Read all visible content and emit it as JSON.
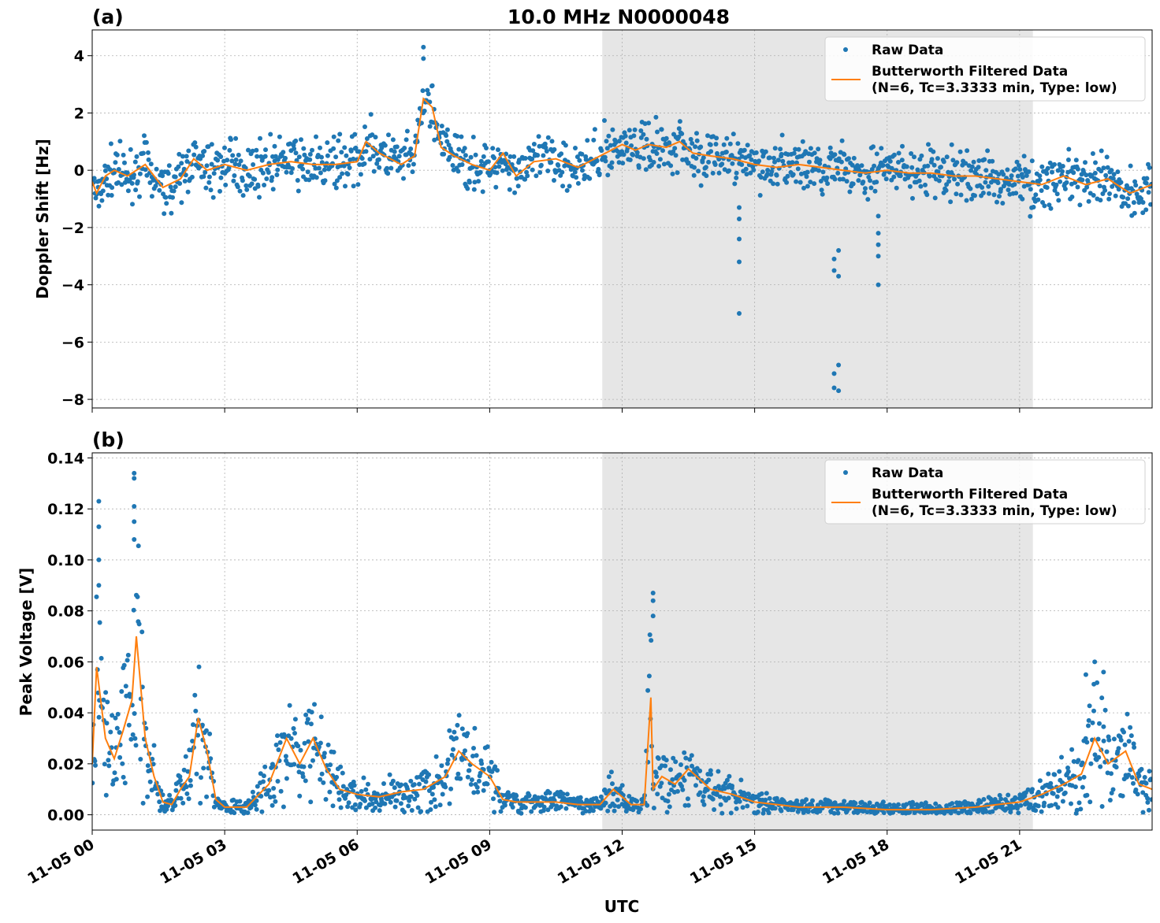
{
  "figure": {
    "title": "10.0 MHz N0000048",
    "xlabel": "UTC",
    "shaded_interval": {
      "start_hour": 11.55,
      "end_hour": 21.3
    },
    "colors": {
      "raw": "#1f77b4",
      "filtered": "#ff7f0e",
      "shade": "#e6e6e6",
      "grid": "#b0b0b0"
    }
  },
  "legend": {
    "raw_label": "Raw Data",
    "filtered_label_line1": "Butterworth Filtered Data",
    "filtered_label_line2": "(N=6, Tc=3.3333 min, Type: low)"
  },
  "chart_data": [
    {
      "type": "scatter",
      "panel_label": "(a)",
      "ylabel": "Doppler Shift [Hz]",
      "xlim_hours": [
        0,
        24
      ],
      "ylim": [
        -8.3,
        4.9
      ],
      "xticks": [
        {
          "hour": 0,
          "label": "11-05 00"
        },
        {
          "hour": 3,
          "label": "11-05 03"
        },
        {
          "hour": 6,
          "label": "11-05 06"
        },
        {
          "hour": 9,
          "label": "11-05 09"
        },
        {
          "hour": 12,
          "label": "11-05 12"
        },
        {
          "hour": 15,
          "label": "11-05 15"
        },
        {
          "hour": 18,
          "label": "11-05 18"
        },
        {
          "hour": 21,
          "label": "11-05 21"
        }
      ],
      "yticks": [
        {
          "v": 4,
          "label": "4"
        },
        {
          "v": 2,
          "label": "2"
        },
        {
          "v": 0,
          "label": "0"
        },
        {
          "v": -2,
          "label": "−2"
        },
        {
          "v": -4,
          "label": "−4"
        },
        {
          "v": -6,
          "label": "−6"
        },
        {
          "v": -8,
          "label": "−8"
        }
      ],
      "grid": true,
      "legend_position": "top-right",
      "series": [
        {
          "name": "Butterworth Filtered Data",
          "kind": "line",
          "x": [
            0,
            0.1,
            0.3,
            0.5,
            0.8,
            1.2,
            1.6,
            2.0,
            2.3,
            2.6,
            3.0,
            3.5,
            4.0,
            4.5,
            5.0,
            5.5,
            6.0,
            6.2,
            6.5,
            7.0,
            7.3,
            7.5,
            7.7,
            7.9,
            8.2,
            8.6,
            9.0,
            9.3,
            9.6,
            10.0,
            10.5,
            11.0,
            11.5,
            12.0,
            12.3,
            12.6,
            13.0,
            13.3,
            13.6,
            14.0,
            14.5,
            15.0,
            15.5,
            16.0,
            16.5,
            17.0,
            17.5,
            18.0,
            18.5,
            19.0,
            19.5,
            20.0,
            20.5,
            21.0,
            21.5,
            22.0,
            22.5,
            23.0,
            23.5,
            24.0
          ],
          "y": [
            -0.4,
            -0.8,
            -0.2,
            0.0,
            -0.2,
            0.2,
            -0.6,
            -0.3,
            0.4,
            0.0,
            0.2,
            0.0,
            0.2,
            0.3,
            0.2,
            0.2,
            0.3,
            1.0,
            0.6,
            0.2,
            0.5,
            2.5,
            2.2,
            0.8,
            0.5,
            0.2,
            0.0,
            0.6,
            -0.2,
            0.3,
            0.4,
            0.1,
            0.5,
            0.9,
            0.7,
            0.9,
            0.8,
            1.0,
            0.6,
            0.5,
            0.4,
            0.2,
            0.1,
            0.2,
            0.1,
            0.0,
            -0.1,
            0.0,
            -0.1,
            -0.1,
            -0.2,
            -0.2,
            -0.3,
            -0.4,
            -0.5,
            -0.2,
            -0.5,
            -0.3,
            -0.8,
            -0.5
          ]
        },
        {
          "name": "Raw Data",
          "kind": "points",
          "outliers": [
            {
              "x": 14.65,
              "y": -1.3
            },
            {
              "x": 14.65,
              "y": -1.7
            },
            {
              "x": 14.65,
              "y": -2.4
            },
            {
              "x": 14.65,
              "y": -3.2
            },
            {
              "x": 14.65,
              "y": -5.0
            },
            {
              "x": 16.8,
              "y": -3.1
            },
            {
              "x": 16.8,
              "y": -3.5
            },
            {
              "x": 16.9,
              "y": -3.7
            },
            {
              "x": 16.9,
              "y": -2.8
            },
            {
              "x": 16.8,
              "y": -7.1
            },
            {
              "x": 16.8,
              "y": -7.6
            },
            {
              "x": 16.9,
              "y": -6.8
            },
            {
              "x": 16.9,
              "y": -7.7
            },
            {
              "x": 17.8,
              "y": -1.6
            },
            {
              "x": 17.8,
              "y": -2.2
            },
            {
              "x": 17.8,
              "y": -2.6
            },
            {
              "x": 17.8,
              "y": -3.0
            },
            {
              "x": 17.8,
              "y": -4.0
            },
            {
              "x": 7.5,
              "y": 4.3
            },
            {
              "x": 7.5,
              "y": 3.9
            }
          ]
        }
      ]
    },
    {
      "type": "scatter",
      "panel_label": "(b)",
      "ylabel": "Peak Voltage [V]",
      "xlim_hours": [
        0,
        24
      ],
      "ylim": [
        -0.006,
        0.142
      ],
      "xticks": [
        {
          "hour": 0,
          "label": "11-05 00"
        },
        {
          "hour": 3,
          "label": "11-05 03"
        },
        {
          "hour": 6,
          "label": "11-05 06"
        },
        {
          "hour": 9,
          "label": "11-05 09"
        },
        {
          "hour": 12,
          "label": "11-05 12"
        },
        {
          "hour": 15,
          "label": "11-05 15"
        },
        {
          "hour": 18,
          "label": "11-05 18"
        },
        {
          "hour": 21,
          "label": "11-05 21"
        }
      ],
      "yticks": [
        {
          "v": 0.14,
          "label": "0.14"
        },
        {
          "v": 0.12,
          "label": "0.12"
        },
        {
          "v": 0.1,
          "label": "0.10"
        },
        {
          "v": 0.08,
          "label": "0.08"
        },
        {
          "v": 0.06,
          "label": "0.06"
        },
        {
          "v": 0.04,
          "label": "0.04"
        },
        {
          "v": 0.02,
          "label": "0.02"
        },
        {
          "v": 0.0,
          "label": "0.00"
        }
      ],
      "grid": true,
      "legend_position": "top-right",
      "series": [
        {
          "name": "Butterworth Filtered Data",
          "kind": "line",
          "x": [
            0,
            0.1,
            0.3,
            0.5,
            0.7,
            0.9,
            1.0,
            1.2,
            1.4,
            1.6,
            1.8,
            2.0,
            2.2,
            2.4,
            2.6,
            2.8,
            3.0,
            3.5,
            4.0,
            4.4,
            4.7,
            5.0,
            5.3,
            5.6,
            6.0,
            6.5,
            7.0,
            7.5,
            8.0,
            8.3,
            8.6,
            9.0,
            9.3,
            9.6,
            10.0,
            10.5,
            11.0,
            11.5,
            11.8,
            12.2,
            12.5,
            12.65,
            12.7,
            12.9,
            13.2,
            13.5,
            14.0,
            14.5,
            15.0,
            16.0,
            17.0,
            18.0,
            19.0,
            20.0,
            21.0,
            21.5,
            22.0,
            22.4,
            22.7,
            23.0,
            23.4,
            23.7,
            24.0
          ],
          "y": [
            0.02,
            0.058,
            0.03,
            0.022,
            0.033,
            0.045,
            0.07,
            0.03,
            0.015,
            0.005,
            0.004,
            0.01,
            0.015,
            0.038,
            0.025,
            0.006,
            0.003,
            0.003,
            0.012,
            0.03,
            0.02,
            0.03,
            0.018,
            0.01,
            0.008,
            0.007,
            0.009,
            0.01,
            0.015,
            0.025,
            0.02,
            0.015,
            0.006,
            0.005,
            0.005,
            0.005,
            0.004,
            0.004,
            0.01,
            0.004,
            0.004,
            0.046,
            0.01,
            0.015,
            0.012,
            0.018,
            0.01,
            0.008,
            0.005,
            0.003,
            0.003,
            0.002,
            0.002,
            0.003,
            0.005,
            0.008,
            0.012,
            0.016,
            0.03,
            0.02,
            0.025,
            0.012,
            0.01
          ]
        },
        {
          "name": "Raw Data",
          "kind": "points",
          "outliers": [
            {
              "x": 0.15,
              "y": 0.123
            },
            {
              "x": 0.15,
              "y": 0.113
            },
            {
              "x": 0.15,
              "y": 0.1
            },
            {
              "x": 0.15,
              "y": 0.09
            },
            {
              "x": 0.95,
              "y": 0.134
            },
            {
              "x": 0.95,
              "y": 0.132
            },
            {
              "x": 0.95,
              "y": 0.121
            },
            {
              "x": 0.95,
              "y": 0.115
            },
            {
              "x": 0.95,
              "y": 0.108
            },
            {
              "x": 12.7,
              "y": 0.087
            },
            {
              "x": 12.7,
              "y": 0.084
            },
            {
              "x": 12.7,
              "y": 0.078
            },
            {
              "x": 22.7,
              "y": 0.06
            },
            {
              "x": 22.9,
              "y": 0.056
            },
            {
              "x": 22.5,
              "y": 0.055
            }
          ]
        }
      ]
    }
  ]
}
